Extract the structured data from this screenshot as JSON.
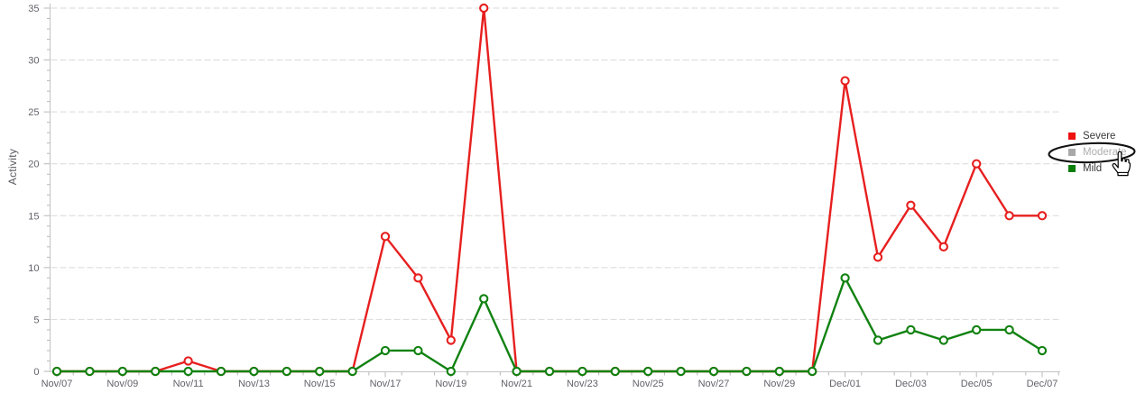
{
  "chart_data": {
    "type": "line",
    "title": "",
    "xlabel": "",
    "ylabel": "Activity",
    "ylim": [
      0,
      35
    ],
    "y_major_step": 5,
    "y_minor_step": 1,
    "grid": "horizontal dashed gridlines at each major y tick",
    "x_label_every": 2,
    "categories": [
      "Nov/07",
      "Nov/08",
      "Nov/09",
      "Nov/10",
      "Nov/11",
      "Nov/12",
      "Nov/13",
      "Nov/14",
      "Nov/15",
      "Nov/16",
      "Nov/17",
      "Nov/18",
      "Nov/19",
      "Nov/20",
      "Nov/21",
      "Nov/22",
      "Nov/23",
      "Nov/24",
      "Nov/25",
      "Nov/26",
      "Nov/27",
      "Nov/28",
      "Nov/29",
      "Nov/30",
      "Dec/01",
      "Dec/02",
      "Dec/03",
      "Dec/04",
      "Dec/05",
      "Dec/06",
      "Dec/07"
    ],
    "series": [
      {
        "name": "Severe",
        "color": "#e71f1f",
        "marker": "circle-open",
        "visible": true,
        "values": [
          0,
          0,
          0,
          0,
          1,
          0,
          0,
          0,
          0,
          0,
          13,
          9,
          3,
          35,
          0,
          0,
          0,
          0,
          0,
          0,
          0,
          0,
          0,
          0,
          28,
          11,
          16,
          12,
          20,
          15,
          15
        ]
      },
      {
        "name": "Moderate",
        "color": "#a8a8a8",
        "marker": "none",
        "visible": false,
        "values": null
      },
      {
        "name": "Mild",
        "color": "#118211",
        "marker": "circle-open",
        "visible": true,
        "values": [
          0,
          0,
          0,
          0,
          0,
          0,
          0,
          0,
          0,
          0,
          2,
          2,
          0,
          7,
          0,
          0,
          0,
          0,
          0,
          0,
          0,
          0,
          0,
          0,
          9,
          3,
          4,
          3,
          4,
          4,
          2
        ]
      }
    ],
    "y_tick_labels": [
      "0",
      "5",
      "10",
      "15",
      "20",
      "25",
      "30",
      "35"
    ],
    "legend": {
      "position": "right",
      "items": [
        {
          "label": "Severe",
          "swatch_color": "#ee0f0f",
          "text_color": "#3a3a3a",
          "enabled": true
        },
        {
          "label": "Moderate",
          "swatch_color": "#a8a8a8",
          "text_color": "#aeaeae",
          "enabled": false
        },
        {
          "label": "Mild",
          "swatch_color": "#0c7e0c",
          "text_color": "#3a3a3a",
          "enabled": true
        }
      ]
    },
    "annotation": {
      "shape": "hand-drawn black ellipse circling the Moderate legend item",
      "stroke_color": "#111111",
      "cursor": "hand-pointer over Moderate legend item"
    },
    "colors": {
      "gridline": "#d9d9d9",
      "axis_line": "#c4c4c4",
      "tick": "#b9b9b9",
      "tick_label": "#62626b",
      "background": "#ffffff"
    }
  }
}
